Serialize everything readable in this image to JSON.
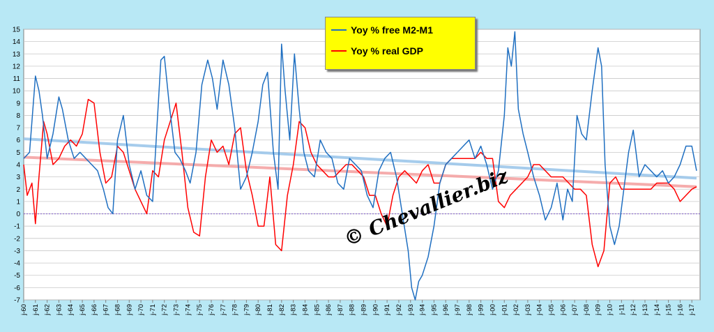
{
  "chart_data": {
    "type": "line",
    "title": "",
    "xlabel": "",
    "ylabel": "",
    "ylim": [
      -7,
      15
    ],
    "yticks": [
      -7,
      -6,
      -5,
      -4,
      -3,
      -2,
      -1,
      0,
      1,
      2,
      3,
      4,
      5,
      6,
      7,
      8,
      9,
      10,
      11,
      12,
      13,
      14,
      15
    ],
    "xlim": [
      1960,
      2017.7
    ],
    "xtick_labels": [
      "j-60",
      "j-61",
      "j-62",
      "j-63",
      "j-64",
      "j-65",
      "j-66",
      "j-67",
      "j-68",
      "j-69",
      "j-70",
      "j-71",
      "j-72",
      "j-73",
      "j-74",
      "j-75",
      "j-76",
      "j-77",
      "j-78",
      "j-79",
      "j-80",
      "j-81",
      "j-82",
      "j-83",
      "j-84",
      "j-85",
      "j-86",
      "j-87",
      "j-88",
      "j-89",
      "j-90",
      "j-91",
      "j-92",
      "j-93",
      "j-94",
      "j-95",
      "j-96",
      "j-97",
      "j-98",
      "j-99",
      "j-00",
      "j-01",
      "j-02",
      "j-03",
      "j-04",
      "j-05",
      "j-06",
      "j-07",
      "j-08",
      "j-09",
      "j-10",
      "j-11",
      "j-12",
      "j-13",
      "j-14",
      "j-15",
      "j-16",
      "j-17"
    ],
    "grid": true,
    "legend_position": "top-center",
    "series": [
      {
        "name": "Yoy % free M2-M1",
        "color": "#1f6fc1",
        "x": [
          1960,
          1960.5,
          1961,
          1961.3,
          1961.6,
          1962,
          1962.5,
          1963,
          1963.3,
          1963.8,
          1964.3,
          1964.8,
          1965.3,
          1965.8,
          1966.3,
          1966.8,
          1967.2,
          1967.6,
          1968,
          1968.5,
          1969,
          1969.5,
          1970,
          1970.5,
          1971,
          1971.3,
          1971.7,
          1972,
          1972.4,
          1972.9,
          1973.3,
          1973.8,
          1974.2,
          1974.7,
          1975.2,
          1975.7,
          1976.1,
          1976.5,
          1977,
          1977.5,
          1978,
          1978.5,
          1979,
          1979.5,
          1980,
          1980.4,
          1980.8,
          1981.3,
          1981.7,
          1982,
          1982.3,
          1982.7,
          1983.1,
          1983.5,
          1983.9,
          1984.3,
          1984.8,
          1985.3,
          1985.8,
          1986.3,
          1986.8,
          1987.3,
          1987.8,
          1988.3,
          1988.8,
          1989.3,
          1989.8,
          1990.3,
          1990.8,
          1991.3,
          1991.8,
          1992.3,
          1992.8,
          1993.1,
          1993.4,
          1993.7,
          1994,
          1994.5,
          1995,
          1995.5,
          1996,
          1996.5,
          1997,
          1997.5,
          1998,
          1998.5,
          1999,
          1999.5,
          2000,
          2000.5,
          2001,
          2001.3,
          2001.6,
          2001.9,
          2002.2,
          2002.6,
          2003,
          2003.5,
          2004,
          2004.5,
          2005,
          2005.5,
          2006,
          2006.4,
          2006.8,
          2007.2,
          2007.6,
          2008,
          2008.5,
          2009,
          2009.3,
          2009.6,
          2010,
          2010.4,
          2010.8,
          2011.2,
          2011.6,
          2012,
          2012.5,
          2013,
          2013.5,
          2014,
          2014.5,
          2015,
          2015.5,
          2016,
          2016.5,
          2017,
          2017.4
        ],
        "values": [
          4.5,
          5.0,
          11.2,
          10.0,
          8.0,
          4.5,
          6.5,
          9.5,
          8.5,
          6.0,
          4.5,
          5.0,
          4.5,
          4.0,
          3.5,
          2.0,
          0.5,
          0.0,
          6.0,
          8.0,
          4.0,
          2.0,
          3.5,
          1.5,
          1.0,
          6.0,
          12.5,
          12.8,
          9.0,
          5.0,
          4.5,
          3.5,
          2.5,
          5.0,
          10.5,
          12.5,
          11.0,
          8.5,
          12.5,
          10.5,
          7.0,
          2.0,
          3.0,
          5.0,
          7.5,
          10.5,
          11.5,
          5.0,
          2.0,
          13.8,
          10.0,
          6.0,
          13.0,
          8.5,
          5.0,
          3.5,
          3.0,
          6.0,
          5.0,
          4.5,
          2.5,
          2.0,
          4.5,
          4.0,
          3.5,
          1.5,
          0.5,
          3.5,
          4.5,
          5.0,
          3.0,
          0.0,
          -3.0,
          -6.0,
          -7.0,
          -5.5,
          -5.0,
          -3.5,
          -1.0,
          2.5,
          4.0,
          4.5,
          5.0,
          5.5,
          6.0,
          4.5,
          5.5,
          4.0,
          2.0,
          3.5,
          8.0,
          13.5,
          12.0,
          14.8,
          8.5,
          6.5,
          5.0,
          3.0,
          1.5,
          -0.5,
          0.5,
          2.5,
          -0.5,
          2.0,
          1.0,
          8.0,
          6.5,
          6.0,
          10.0,
          13.5,
          12.0,
          4.0,
          -1.0,
          -2.5,
          -1.0,
          2.0,
          5.0,
          6.8,
          3.0,
          4.0,
          3.5,
          3.0,
          3.5,
          2.5,
          3.0,
          4.0,
          5.5,
          5.5,
          3.5
        ]
      },
      {
        "name": "Yoy % real GDP",
        "color": "#ff0000",
        "x": [
          1960,
          1960.3,
          1960.7,
          1961,
          1961.3,
          1961.7,
          1962,
          1962.5,
          1963,
          1963.5,
          1964,
          1964.5,
          1965,
          1965.5,
          1966,
          1966.5,
          1967,
          1967.5,
          1968,
          1968.5,
          1969,
          1969.5,
          1970,
          1970.5,
          1971,
          1971.5,
          1972,
          1972.5,
          1973,
          1973.5,
          1974,
          1974.5,
          1975,
          1975.5,
          1976,
          1976.5,
          1977,
          1977.5,
          1978,
          1978.5,
          1979,
          1979.5,
          1980,
          1980.5,
          1981,
          1981.5,
          1982,
          1982.5,
          1983,
          1983.5,
          1984,
          1984.5,
          1985,
          1985.5,
          1986,
          1986.5,
          1987,
          1987.5,
          1988,
          1988.5,
          1989,
          1989.5,
          1990,
          1990.5,
          1991,
          1991.5,
          1992,
          1992.5,
          1993,
          1993.5,
          1994,
          1994.5,
          1995,
          1995.5,
          1996,
          1996.5,
          1997,
          1997.5,
          1998,
          1998.5,
          1999,
          1999.5,
          2000,
          2000.5,
          2001,
          2001.5,
          2002,
          2002.5,
          2003,
          2003.5,
          2004,
          2004.5,
          2005,
          2005.5,
          2006,
          2006.5,
          2007,
          2007.5,
          2008,
          2008.5,
          2009,
          2009.5,
          2010,
          2010.5,
          2011,
          2011.5,
          2012,
          2012.5,
          2013,
          2013.5,
          2014,
          2014.5,
          2015,
          2015.5,
          2016,
          2016.5,
          2017,
          2017.4
        ],
        "values": [
          4.0,
          1.5,
          2.5,
          -0.8,
          3.0,
          7.5,
          6.5,
          4.0,
          4.5,
          5.5,
          6.0,
          5.5,
          6.5,
          9.3,
          9.0,
          5.0,
          2.5,
          3.0,
          5.5,
          5.0,
          3.5,
          2.0,
          1.0,
          0.0,
          3.5,
          3.0,
          6.0,
          7.5,
          9.0,
          5.0,
          0.5,
          -1.5,
          -1.8,
          3.0,
          6.0,
          5.0,
          5.5,
          4.0,
          6.5,
          7.0,
          3.5,
          1.5,
          -1.0,
          -1.0,
          3.0,
          -2.5,
          -3.0,
          1.5,
          4.0,
          7.5,
          7.0,
          5.0,
          4.0,
          3.5,
          3.0,
          3.0,
          3.5,
          4.0,
          4.0,
          3.5,
          3.0,
          1.5,
          1.5,
          0.0,
          -1.0,
          1.5,
          3.0,
          3.5,
          3.0,
          2.5,
          3.5,
          4.0,
          2.5,
          2.5,
          4.0,
          4.5,
          4.5,
          4.5,
          4.5,
          4.5,
          5.0,
          4.5,
          4.5,
          1.0,
          0.5,
          1.5,
          2.0,
          2.5,
          3.0,
          4.0,
          4.0,
          3.5,
          3.0,
          3.0,
          3.0,
          2.5,
          2.0,
          2.0,
          1.5,
          -2.5,
          -4.3,
          -3.0,
          2.5,
          3.0,
          2.0,
          2.0,
          2.0,
          2.0,
          2.0,
          2.0,
          2.5,
          2.5,
          2.5,
          2.0,
          1.0,
          1.5,
          2.0,
          2.2
        ]
      }
    ],
    "trendlines": [
      {
        "series": "Yoy % free M2-M1",
        "color": "#9cc6ea",
        "x": [
          1960,
          2017.4
        ],
        "values": [
          6.1,
          2.9
        ]
      },
      {
        "series": "Yoy % real GDP",
        "color": "#f4a3a3",
        "x": [
          1960,
          2017.4
        ],
        "values": [
          4.6,
          2.2
        ]
      }
    ],
    "reference_line": {
      "y": 0,
      "color": "#8866cc"
    }
  },
  "legend": {
    "items": [
      {
        "label": "Yoy % free M2-M1",
        "color": "#1f6fc1"
      },
      {
        "label": "Yoy % real GDP",
        "color": "#ff0000"
      }
    ]
  },
  "watermark": "© Chevallier.biz"
}
